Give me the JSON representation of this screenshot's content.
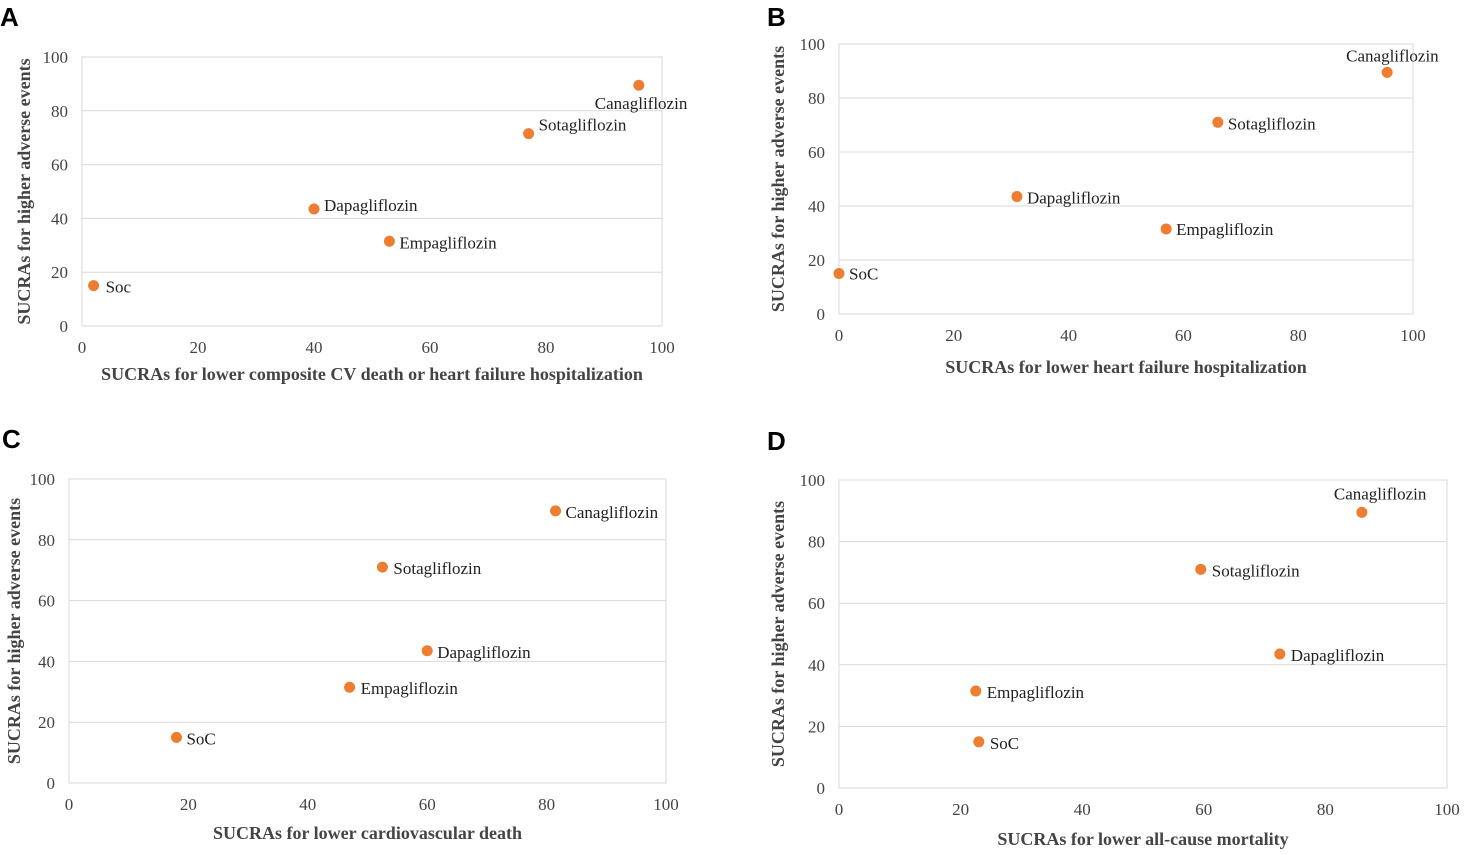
{
  "colors": {
    "point": "#ED7D31",
    "grid": "#D9D9D9",
    "text": "#444444"
  },
  "chart_data": [
    {
      "panel": "A",
      "type": "scatter",
      "xlabel": "SUCRAs for lower composite CV death or heart failure hospitalization",
      "ylabel": "SUCRAs for higher adverse events",
      "xlim": [
        0,
        100
      ],
      "ylim": [
        0,
        100
      ],
      "xticks": [
        "0",
        "20",
        "40",
        "60",
        "80",
        "100"
      ],
      "yticks": [
        "0",
        "20",
        "40",
        "60",
        "80",
        "100"
      ],
      "grid": "horizontal",
      "points": [
        {
          "label": "Soc",
          "x": 2,
          "y": 15
        },
        {
          "label": "Dapagliflozin",
          "x": 40,
          "y": 43.5
        },
        {
          "label": "Empagliflozin",
          "x": 53,
          "y": 31.5
        },
        {
          "label": "Sotagliflozin",
          "x": 77,
          "y": 71.5
        },
        {
          "label": "Canagliflozin",
          "x": 96,
          "y": 89.5
        }
      ]
    },
    {
      "panel": "B",
      "type": "scatter",
      "xlabel": "SUCRAs for lower heart failure hospitalization",
      "ylabel": "SUCRAs for higher adverse events",
      "xlim": [
        0,
        100
      ],
      "ylim": [
        0,
        100
      ],
      "xticks": [
        "0",
        "20",
        "40",
        "60",
        "80",
        "100"
      ],
      "yticks": [
        "0",
        "20",
        "40",
        "60",
        "80",
        "100"
      ],
      "grid": "horizontal",
      "points": [
        {
          "label": "SoC",
          "x": 0,
          "y": 15
        },
        {
          "label": "Dapagliflozin",
          "x": 31,
          "y": 43.5
        },
        {
          "label": "Empagliflozin",
          "x": 57,
          "y": 31.5
        },
        {
          "label": "Sotagliflozin",
          "x": 66,
          "y": 71
        },
        {
          "label": "Canagliflozin",
          "x": 95.5,
          "y": 89.5
        }
      ]
    },
    {
      "panel": "C",
      "type": "scatter",
      "xlabel": "SUCRAs for lower cardiovascular death",
      "ylabel": "SUCRAs for higher adverse events",
      "xlim": [
        0,
        100
      ],
      "ylim": [
        0,
        100
      ],
      "xticks": [
        "0",
        "20",
        "40",
        "60",
        "80",
        "100"
      ],
      "yticks": [
        "0",
        "20",
        "40",
        "60",
        "80",
        "100"
      ],
      "grid": "horizontal",
      "points": [
        {
          "label": "SoC",
          "x": 18,
          "y": 15
        },
        {
          "label": "Empagliflozin",
          "x": 47,
          "y": 31.5
        },
        {
          "label": "Dapagliflozin",
          "x": 60,
          "y": 43.5
        },
        {
          "label": "Sotagliflozin",
          "x": 52.5,
          "y": 71
        },
        {
          "label": "Canagliflozin",
          "x": 81.5,
          "y": 89.5
        }
      ]
    },
    {
      "panel": "D",
      "type": "scatter",
      "xlabel": "SUCRAs for lower all-cause mortality",
      "ylabel": "SUCRAs for higher adverse events",
      "xlim": [
        0,
        100
      ],
      "ylim": [
        0,
        100
      ],
      "xticks": [
        "0",
        "20",
        "40",
        "60",
        "80",
        "100"
      ],
      "yticks": [
        "0",
        "20",
        "40",
        "60",
        "80",
        "100"
      ],
      "grid": "horizontal",
      "points": [
        {
          "label": "SoC",
          "x": 23,
          "y": 15
        },
        {
          "label": "Empagliflozin",
          "x": 22.5,
          "y": 31.5
        },
        {
          "label": "Dapagliflozin",
          "x": 72.5,
          "y": 43.5
        },
        {
          "label": "Sotagliflozin",
          "x": 59.5,
          "y": 71
        },
        {
          "label": "Canagliflozin",
          "x": 86,
          "y": 89.5
        }
      ]
    }
  ]
}
